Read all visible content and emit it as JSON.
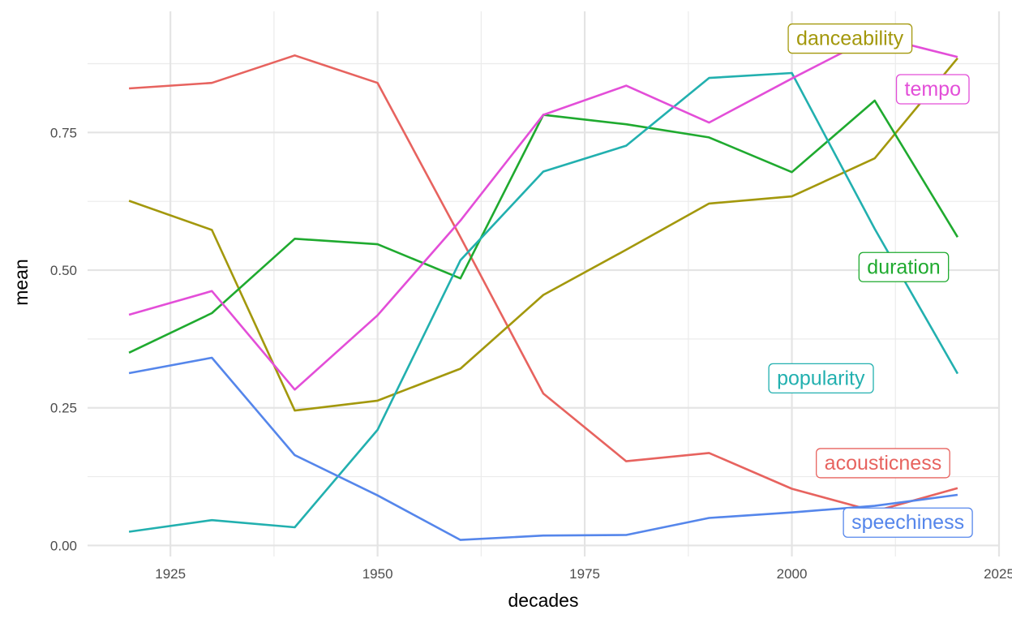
{
  "chart_data": {
    "type": "line",
    "title": "",
    "xlabel": "decades",
    "ylabel": "mean",
    "xlim": [
      1915,
      2025
    ],
    "ylim": [
      -0.02,
      0.97
    ],
    "x_ticks": [
      {
        "value": 1925,
        "label": "1925"
      },
      {
        "value": 1950,
        "label": "1950"
      },
      {
        "value": 1975,
        "label": "1975"
      },
      {
        "value": 2000,
        "label": "2000"
      },
      {
        "value": 2025,
        "label": "2025"
      }
    ],
    "y_ticks": [
      {
        "value": 0,
        "label": "0.00"
      },
      {
        "value": 0.25,
        "label": "0.25"
      },
      {
        "value": 0.5,
        "label": "0.50"
      },
      {
        "value": 0.75,
        "label": "0.75"
      }
    ],
    "grid": true,
    "legend": "direct labels",
    "x": [
      1920,
      1930,
      1940,
      1950,
      1960,
      1970,
      1980,
      1990,
      2000,
      2010,
      2020
    ],
    "series": [
      {
        "name": "acousticness",
        "color": "#E7635F",
        "values": [
          0.83,
          0.84,
          0.89,
          0.84,
          0.56,
          0.276,
          0.153,
          0.168,
          0.103,
          0.062,
          0.104
        ],
        "label_x": 2011,
        "label_y": 0.151
      },
      {
        "name": "danceability",
        "color": "#A3980C",
        "values": [
          0.626,
          0.573,
          0.245,
          0.263,
          0.321,
          0.455,
          0.537,
          0.621,
          0.634,
          0.703,
          0.885
        ],
        "label_x": 2007,
        "label_y": 0.922
      },
      {
        "name": "duration",
        "color": "#1FAA2F",
        "values": [
          0.35,
          0.422,
          0.557,
          0.547,
          0.485,
          0.782,
          0.765,
          0.741,
          0.678,
          0.808,
          0.56
        ],
        "label_x": 2013.5,
        "label_y": 0.507
      },
      {
        "name": "popularity",
        "color": "#22B0AF",
        "values": [
          0.025,
          0.046,
          0.033,
          0.21,
          0.518,
          0.679,
          0.726,
          0.849,
          0.858,
          0.575,
          0.312
        ],
        "label_x": 2003.5,
        "label_y": 0.305
      },
      {
        "name": "speechiness",
        "color": "#5586EB",
        "values": [
          0.313,
          0.341,
          0.164,
          0.091,
          0.01,
          0.018,
          0.019,
          0.05,
          0.06,
          0.072,
          0.092
        ],
        "label_x": 2014,
        "label_y": 0.043
      },
      {
        "name": "tempo",
        "color": "#E34ED8",
        "values": [
          0.419,
          0.462,
          0.283,
          0.418,
          0.59,
          0.782,
          0.835,
          0.768,
          0.848,
          0.925,
          0.887
        ],
        "label_x": 2017,
        "label_y": 0.83
      }
    ]
  }
}
